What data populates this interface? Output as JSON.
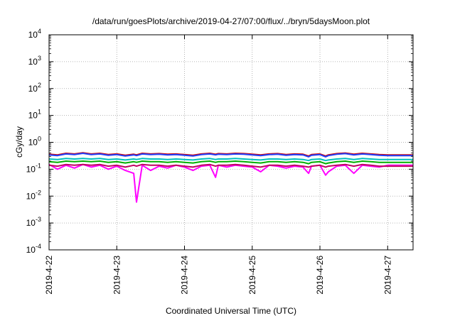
{
  "chart_data": {
    "type": "line",
    "title": "/data/run/goesPlots/archive/2019-04-27/07:00/flux/../bryn/5daysMoon.plot",
    "xlabel": "Coordinated Universal Time (UTC)",
    "ylabel": "cGy/day",
    "y_scale": "log",
    "ylim": [
      0.0001,
      10000
    ],
    "xlim": [
      "2019-04-22T00:00",
      "2019-04-27T09:00"
    ],
    "grid": true,
    "legend": "none",
    "y_ticks": [
      {
        "base": "10",
        "exp": "-4"
      },
      {
        "base": "10",
        "exp": "-3"
      },
      {
        "base": "10",
        "exp": "-2"
      },
      {
        "base": "10",
        "exp": "-1"
      },
      {
        "base": "10",
        "exp": "0"
      },
      {
        "base": "10",
        "exp": "1"
      },
      {
        "base": "10",
        "exp": "2"
      },
      {
        "base": "10",
        "exp": "3"
      },
      {
        "base": "10",
        "exp": "4"
      }
    ],
    "x_ticks": [
      "2019-4-22",
      "2019-4-23",
      "2019-4-24",
      "2019-4-25",
      "2019-4-26",
      "2019-4-27"
    ],
    "x": [
      "2019-04-22T00:00",
      "2019-04-22T03:00",
      "2019-04-22T06:00",
      "2019-04-22T09:00",
      "2019-04-22T12:00",
      "2019-04-22T15:00",
      "2019-04-22T18:00",
      "2019-04-22T21:00",
      "2019-04-23T00:00",
      "2019-04-23T03:00",
      "2019-04-23T06:00",
      "2019-04-23T07:00",
      "2019-04-23T09:00",
      "2019-04-23T12:00",
      "2019-04-23T15:00",
      "2019-04-23T18:00",
      "2019-04-23T21:00",
      "2019-04-24T00:00",
      "2019-04-24T03:00",
      "2019-04-24T06:00",
      "2019-04-24T09:00",
      "2019-04-24T11:00",
      "2019-04-24T12:00",
      "2019-04-24T15:00",
      "2019-04-24T18:00",
      "2019-04-24T21:00",
      "2019-04-25T00:00",
      "2019-04-25T03:00",
      "2019-04-25T06:00",
      "2019-04-25T09:00",
      "2019-04-25T12:00",
      "2019-04-25T15:00",
      "2019-04-25T18:00",
      "2019-04-25T20:00",
      "2019-04-25T21:00",
      "2019-04-26T00:00",
      "2019-04-26T02:00",
      "2019-04-26T03:00",
      "2019-04-26T06:00",
      "2019-04-26T09:00",
      "2019-04-26T12:00",
      "2019-04-26T15:00",
      "2019-04-26T18:00",
      "2019-04-26T21:00",
      "2019-04-27T00:00",
      "2019-04-27T03:00",
      "2019-04-27T06:00",
      "2019-04-27T09:00"
    ],
    "series": [
      {
        "color": "#e0c000",
        "values": [
          0.35,
          0.33,
          0.38,
          0.36,
          0.4,
          0.36,
          0.38,
          0.34,
          0.36,
          0.32,
          0.35,
          0.33,
          0.38,
          0.36,
          0.37,
          0.35,
          0.36,
          0.34,
          0.32,
          0.36,
          0.38,
          0.35,
          0.37,
          0.36,
          0.38,
          0.37,
          0.35,
          0.33,
          0.36,
          0.37,
          0.34,
          0.36,
          0.35,
          0.3,
          0.34,
          0.36,
          0.3,
          0.33,
          0.37,
          0.39,
          0.35,
          0.38,
          0.36,
          0.34,
          0.33,
          0.33,
          0.33,
          0.33
        ]
      },
      {
        "color": "#d00000",
        "values": [
          0.36,
          0.34,
          0.39,
          0.37,
          0.41,
          0.37,
          0.39,
          0.35,
          0.37,
          0.33,
          0.36,
          0.34,
          0.39,
          0.37,
          0.38,
          0.36,
          0.37,
          0.35,
          0.33,
          0.37,
          0.39,
          0.36,
          0.38,
          0.37,
          0.39,
          0.38,
          0.36,
          0.34,
          0.37,
          0.38,
          0.35,
          0.37,
          0.36,
          0.31,
          0.35,
          0.37,
          0.31,
          0.34,
          0.38,
          0.4,
          0.36,
          0.39,
          0.37,
          0.35,
          0.34,
          0.34,
          0.34,
          0.34
        ]
      },
      {
        "color": "#2040ff",
        "values": [
          0.34,
          0.32,
          0.37,
          0.35,
          0.39,
          0.35,
          0.37,
          0.33,
          0.35,
          0.31,
          0.34,
          0.32,
          0.37,
          0.35,
          0.36,
          0.34,
          0.35,
          0.33,
          0.31,
          0.35,
          0.37,
          0.34,
          0.36,
          0.35,
          0.37,
          0.36,
          0.34,
          0.32,
          0.35,
          0.36,
          0.33,
          0.35,
          0.34,
          0.29,
          0.33,
          0.35,
          0.29,
          0.32,
          0.36,
          0.38,
          0.34,
          0.37,
          0.35,
          0.33,
          0.32,
          0.32,
          0.32,
          0.32
        ]
      },
      {
        "color": "#00c0c0",
        "values": [
          0.24,
          0.23,
          0.25,
          0.24,
          0.25,
          0.24,
          0.25,
          0.23,
          0.24,
          0.22,
          0.24,
          0.23,
          0.25,
          0.24,
          0.24,
          0.23,
          0.24,
          0.23,
          0.22,
          0.24,
          0.25,
          0.23,
          0.24,
          0.24,
          0.25,
          0.24,
          0.23,
          0.22,
          0.24,
          0.24,
          0.23,
          0.24,
          0.23,
          0.21,
          0.23,
          0.24,
          0.21,
          0.22,
          0.24,
          0.25,
          0.23,
          0.25,
          0.24,
          0.23,
          0.23,
          0.23,
          0.23,
          0.23
        ]
      },
      {
        "color": "#00b000",
        "values": [
          0.19,
          0.18,
          0.2,
          0.19,
          0.2,
          0.19,
          0.2,
          0.18,
          0.19,
          0.17,
          0.19,
          0.18,
          0.2,
          0.19,
          0.19,
          0.18,
          0.19,
          0.18,
          0.17,
          0.19,
          0.2,
          0.18,
          0.19,
          0.19,
          0.2,
          0.19,
          0.18,
          0.17,
          0.19,
          0.19,
          0.18,
          0.19,
          0.18,
          0.16,
          0.18,
          0.19,
          0.16,
          0.17,
          0.19,
          0.2,
          0.18,
          0.2,
          0.19,
          0.18,
          0.18,
          0.18,
          0.18,
          0.18
        ]
      },
      {
        "color": "#ff00ff",
        "values": [
          0.15,
          0.1,
          0.14,
          0.11,
          0.15,
          0.12,
          0.14,
          0.1,
          0.13,
          0.09,
          0.07,
          0.006,
          0.14,
          0.09,
          0.13,
          0.11,
          0.14,
          0.12,
          0.09,
          0.13,
          0.14,
          0.05,
          0.14,
          0.12,
          0.14,
          0.13,
          0.12,
          0.08,
          0.14,
          0.13,
          0.11,
          0.13,
          0.12,
          0.07,
          0.13,
          0.14,
          0.06,
          0.08,
          0.13,
          0.14,
          0.07,
          0.14,
          0.13,
          0.12,
          0.14,
          0.14,
          0.14,
          0.14
        ]
      },
      {
        "color": "#c00060",
        "values": [
          0.14,
          0.13,
          0.15,
          0.14,
          0.15,
          0.14,
          0.15,
          0.13,
          0.14,
          0.12,
          0.14,
          0.13,
          0.15,
          0.14,
          0.14,
          0.13,
          0.14,
          0.13,
          0.12,
          0.14,
          0.15,
          0.13,
          0.14,
          0.14,
          0.15,
          0.14,
          0.13,
          0.12,
          0.14,
          0.14,
          0.13,
          0.14,
          0.13,
          0.12,
          0.13,
          0.14,
          0.12,
          0.13,
          0.14,
          0.15,
          0.13,
          0.15,
          0.14,
          0.13,
          0.13,
          0.13,
          0.13,
          0.13
        ]
      }
    ]
  }
}
